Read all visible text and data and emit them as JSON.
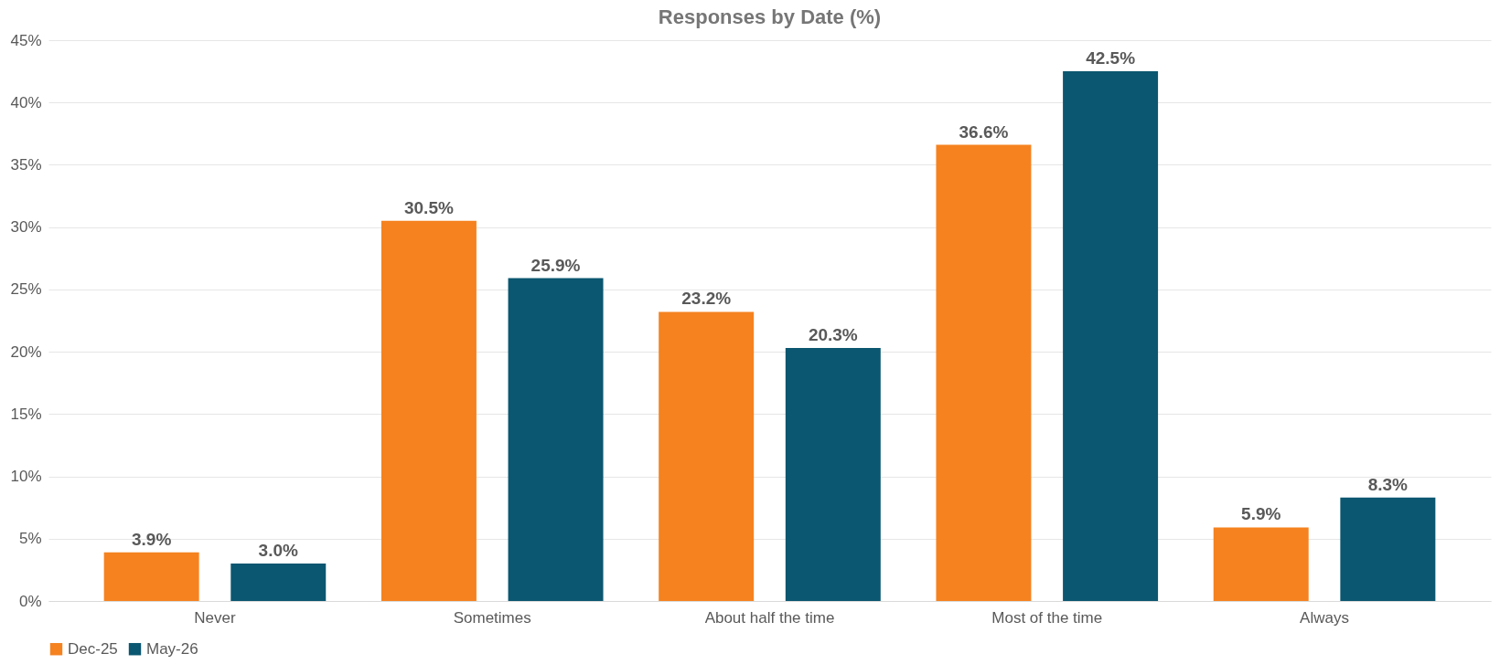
{
  "chart_data": {
    "type": "bar",
    "title": "Responses by Date (%)",
    "categories": [
      "Never",
      "Sometimes",
      "About half the time",
      "Most of the time",
      "Always"
    ],
    "series": [
      {
        "name": "Dec-25",
        "color": "#f5821f",
        "values": [
          3.9,
          30.5,
          23.2,
          36.6,
          5.9
        ],
        "value_labels": [
          "3.9%",
          "30.5%",
          "23.2%",
          "36.6%",
          "5.9%"
        ]
      },
      {
        "name": "May-26",
        "color": "#0b5670",
        "values": [
          3.0,
          25.9,
          20.3,
          42.5,
          8.3
        ],
        "value_labels": [
          "3.0%",
          "25.9%",
          "20.3%",
          "42.5%",
          "8.3%"
        ]
      }
    ],
    "ylim": [
      0,
      45
    ],
    "yticks": [
      {
        "value": 0,
        "label": "0%"
      },
      {
        "value": 5,
        "label": "5%"
      },
      {
        "value": 10,
        "label": "10%"
      },
      {
        "value": 15,
        "label": "15%"
      },
      {
        "value": 20,
        "label": "20%"
      },
      {
        "value": 25,
        "label": "25%"
      },
      {
        "value": 30,
        "label": "30%"
      },
      {
        "value": 35,
        "label": "35%"
      },
      {
        "value": 40,
        "label": "40%"
      },
      {
        "value": 45,
        "label": "45%"
      }
    ],
    "grid": "y",
    "legend": "bottom"
  }
}
